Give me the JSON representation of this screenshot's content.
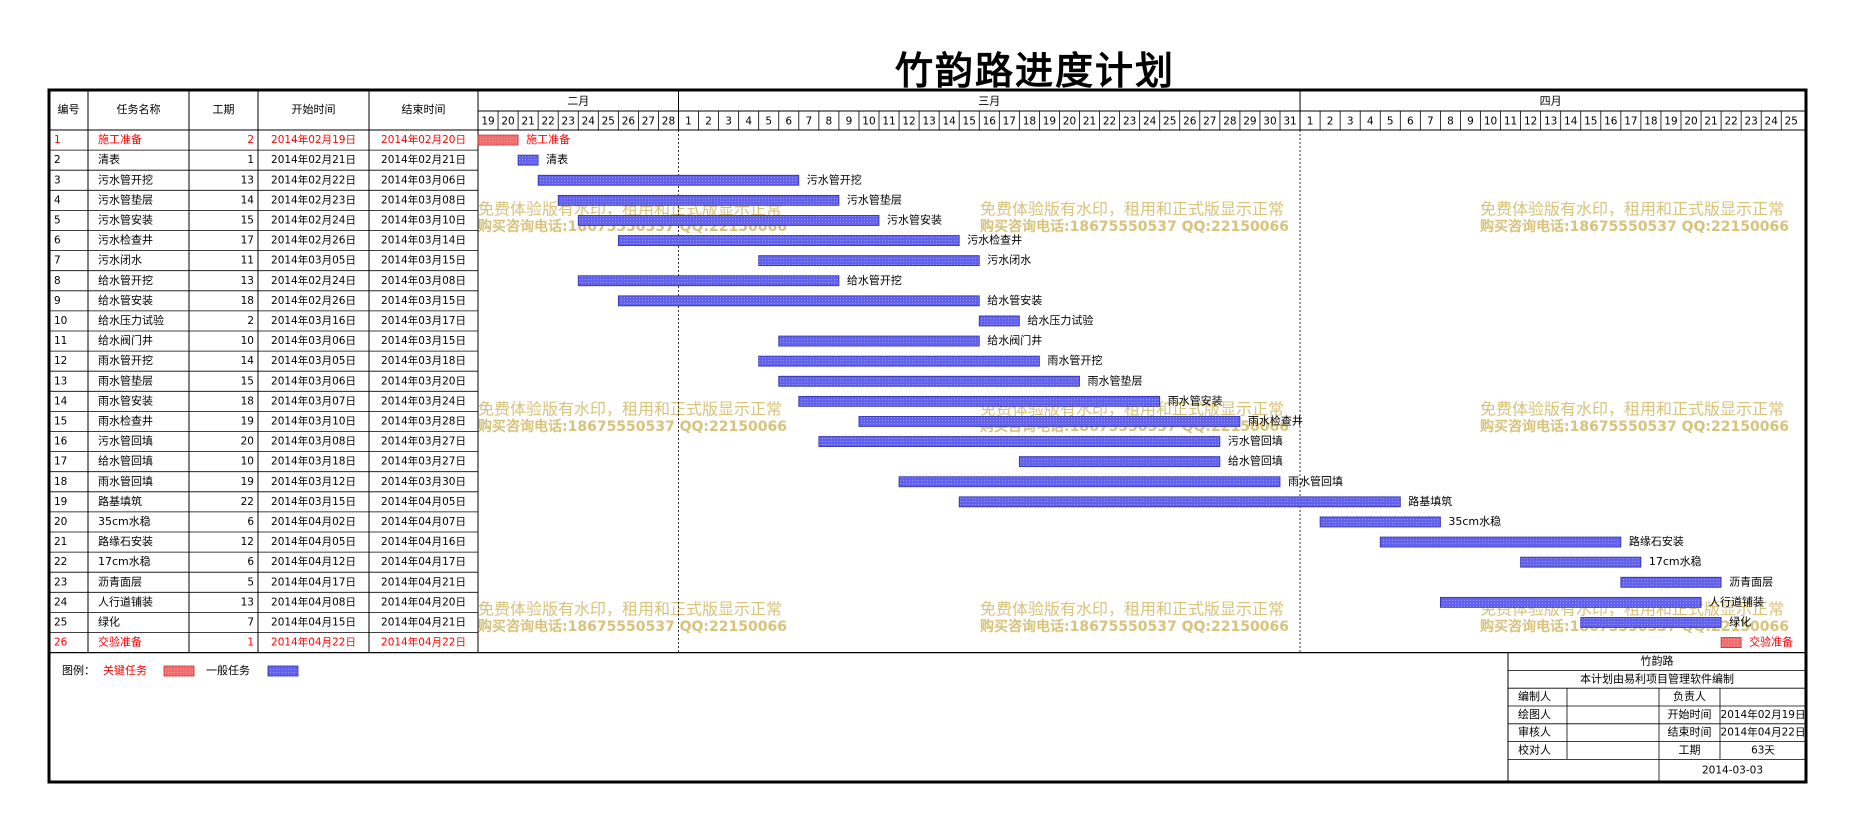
{
  "title": "竹韵路进度计划",
  "chart_data": {
    "type": "gantt",
    "title": "竹韵路进度计划",
    "columns": [
      "编号",
      "任务名称",
      "工期",
      "开始时间",
      "结束时间"
    ],
    "months": [
      {
        "label": "二月",
        "days": [
          "19",
          "20",
          "21",
          "22",
          "23",
          "24",
          "25",
          "26",
          "27",
          "28"
        ]
      },
      {
        "label": "三月",
        "days": [
          "1",
          "2",
          "3",
          "4",
          "5",
          "6",
          "7",
          "8",
          "9",
          "10",
          "11",
          "12",
          "13",
          "14",
          "15",
          "16",
          "17",
          "18",
          "19",
          "20",
          "21",
          "22",
          "23",
          "24",
          "25",
          "26",
          "27",
          "28",
          "29",
          "30",
          "31"
        ]
      },
      {
        "label": "四月",
        "days": [
          "1",
          "2",
          "3",
          "4",
          "5",
          "6",
          "7",
          "8",
          "9",
          "10",
          "11",
          "12",
          "13",
          "14",
          "15",
          "16",
          "17",
          "18",
          "19",
          "20",
          "21",
          "22",
          "23",
          "24",
          "25"
        ]
      }
    ],
    "tasks": [
      {
        "id": "1",
        "name": "施工准备",
        "duration": 2,
        "start": "2014年02月19日",
        "end": "2014年02月20日",
        "start_date": "2014-02-19",
        "end_date": "2014-02-20",
        "critical": true
      },
      {
        "id": "2",
        "name": "清表",
        "duration": 1,
        "start": "2014年02月21日",
        "end": "2014年02月21日",
        "start_date": "2014-02-21",
        "end_date": "2014-02-21",
        "critical": false
      },
      {
        "id": "3",
        "name": "污水管开挖",
        "duration": 13,
        "start": "2014年02月22日",
        "end": "2014年03月06日",
        "start_date": "2014-02-22",
        "end_date": "2014-03-06",
        "critical": false
      },
      {
        "id": "4",
        "name": "污水管垫层",
        "duration": 14,
        "start": "2014年02月23日",
        "end": "2014年03月08日",
        "start_date": "2014-02-23",
        "end_date": "2014-03-08",
        "critical": false
      },
      {
        "id": "5",
        "name": "污水管安装",
        "duration": 15,
        "start": "2014年02月24日",
        "end": "2014年03月10日",
        "start_date": "2014-02-24",
        "end_date": "2014-03-10",
        "critical": false
      },
      {
        "id": "6",
        "name": "污水检查井",
        "duration": 17,
        "start": "2014年02月26日",
        "end": "2014年03月14日",
        "start_date": "2014-02-26",
        "end_date": "2014-03-14",
        "critical": false
      },
      {
        "id": "7",
        "name": "污水闭水",
        "duration": 11,
        "start": "2014年03月05日",
        "end": "2014年03月15日",
        "start_date": "2014-03-05",
        "end_date": "2014-03-15",
        "critical": false
      },
      {
        "id": "8",
        "name": "给水管开挖",
        "duration": 13,
        "start": "2014年02月24日",
        "end": "2014年03月08日",
        "start_date": "2014-02-24",
        "end_date": "2014-03-08",
        "critical": false
      },
      {
        "id": "9",
        "name": "给水管安装",
        "duration": 18,
        "start": "2014年02月26日",
        "end": "2014年03月15日",
        "start_date": "2014-02-26",
        "end_date": "2014-03-15",
        "critical": false
      },
      {
        "id": "10",
        "name": "给水压力试验",
        "duration": 2,
        "start": "2014年03月16日",
        "end": "2014年03月17日",
        "start_date": "2014-03-16",
        "end_date": "2014-03-17",
        "critical": false
      },
      {
        "id": "11",
        "name": "给水阀门井",
        "duration": 10,
        "start": "2014年03月06日",
        "end": "2014年03月15日",
        "start_date": "2014-03-06",
        "end_date": "2014-03-15",
        "critical": false
      },
      {
        "id": "12",
        "name": "雨水管开挖",
        "duration": 14,
        "start": "2014年03月05日",
        "end": "2014年03月18日",
        "start_date": "2014-03-05",
        "end_date": "2014-03-18",
        "critical": false
      },
      {
        "id": "13",
        "name": "雨水管垫层",
        "duration": 15,
        "start": "2014年03月06日",
        "end": "2014年03月20日",
        "start_date": "2014-03-06",
        "end_date": "2014-03-20",
        "critical": false
      },
      {
        "id": "14",
        "name": "雨水管安装",
        "duration": 18,
        "start": "2014年03月07日",
        "end": "2014年03月24日",
        "start_date": "2014-03-07",
        "end_date": "2014-03-24",
        "critical": false
      },
      {
        "id": "15",
        "name": "雨水检查井",
        "duration": 19,
        "start": "2014年03月10日",
        "end": "2014年03月28日",
        "start_date": "2014-03-10",
        "end_date": "2014-03-28",
        "critical": false
      },
      {
        "id": "16",
        "name": "污水管回填",
        "duration": 20,
        "start": "2014年03月08日",
        "end": "2014年03月27日",
        "start_date": "2014-03-08",
        "end_date": "2014-03-27",
        "critical": false
      },
      {
        "id": "17",
        "name": "给水管回填",
        "duration": 10,
        "start": "2014年03月18日",
        "end": "2014年03月27日",
        "start_date": "2014-03-18",
        "end_date": "2014-03-27",
        "critical": false
      },
      {
        "id": "18",
        "name": "雨水管回填",
        "duration": 19,
        "start": "2014年03月12日",
        "end": "2014年03月30日",
        "start_date": "2014-03-12",
        "end_date": "2014-03-30",
        "critical": false
      },
      {
        "id": "19",
        "name": "路基填筑",
        "duration": 22,
        "start": "2014年03月15日",
        "end": "2014年04月05日",
        "start_date": "2014-03-15",
        "end_date": "2014-04-05",
        "critical": false
      },
      {
        "id": "20",
        "name": "35cm水稳",
        "duration": 6,
        "start": "2014年04月02日",
        "end": "2014年04月07日",
        "start_date": "2014-04-02",
        "end_date": "2014-04-07",
        "critical": false
      },
      {
        "id": "21",
        "name": "路缘石安装",
        "duration": 12,
        "start": "2014年04月05日",
        "end": "2014年04月16日",
        "start_date": "2014-04-05",
        "end_date": "2014-04-16",
        "critical": false
      },
      {
        "id": "22",
        "name": "17cm水稳",
        "duration": 6,
        "start": "2014年04月12日",
        "end": "2014年04月17日",
        "start_date": "2014-04-12",
        "end_date": "2014-04-17",
        "critical": false
      },
      {
        "id": "23",
        "name": "沥青面层",
        "duration": 5,
        "start": "2014年04月17日",
        "end": "2014年04月21日",
        "start_date": "2014-04-17",
        "end_date": "2014-04-21",
        "critical": false
      },
      {
        "id": "24",
        "name": "人行道铺装",
        "duration": 13,
        "start": "2014年04月08日",
        "end": "2014年04月20日",
        "start_date": "2014-04-08",
        "end_date": "2014-04-20",
        "critical": false
      },
      {
        "id": "25",
        "name": "绿化",
        "duration": 7,
        "start": "2014年04月15日",
        "end": "2014年04月21日",
        "start_date": "2014-04-15",
        "end_date": "2014-04-21",
        "critical": false
      },
      {
        "id": "26",
        "name": "交验准备",
        "duration": 1,
        "start": "2014年04月22日",
        "end": "2014年04月22日",
        "start_date": "2014-04-22",
        "end_date": "2014-04-22",
        "critical": true
      }
    ],
    "legend": {
      "label": "图例：",
      "critical": "关键任务",
      "normal": "一般任务"
    },
    "watermark": {
      "line1": "免费体验版有水印，租用和正式版显示正常",
      "line2": "购买咨询电话:18675550537 QQ:22150066"
    },
    "info_box": {
      "project": "竹韵路",
      "note": "本计划由易利项目管理软件编制",
      "rows": [
        [
          "编制人",
          "",
          "负责人",
          ""
        ],
        [
          "绘图人",
          "",
          "开始时间",
          "2014年02月19日"
        ],
        [
          "审核人",
          "",
          "结束时间",
          "2014年04月22日"
        ],
        [
          "校对人",
          "",
          "工期",
          "63天"
        ]
      ],
      "date": "2014-03-03"
    },
    "colors": {
      "critical": "#f26d6d",
      "normal": "#6262ee",
      "critical_text": "#ff0000",
      "watermark": "#d8c37a",
      "grid": "#000000"
    }
  }
}
